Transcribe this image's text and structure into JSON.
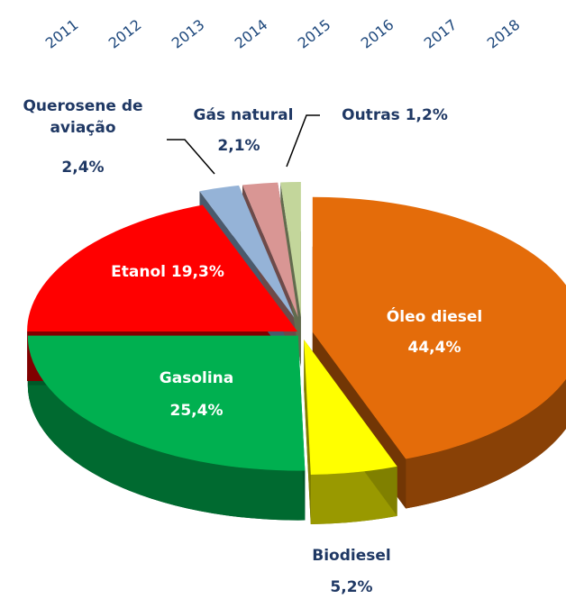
{
  "chart_data": {
    "type": "pie",
    "years": [
      "2011",
      "2012",
      "2013",
      "2014",
      "2015",
      "2016",
      "2017",
      "2018"
    ],
    "categories": [
      "Óleo diesel",
      "Biodiesel",
      "Gasolina",
      "Etanol",
      "Querosene de aviação",
      "Gás natural",
      "Outras"
    ],
    "values": [
      44.4,
      5.2,
      25.4,
      19.3,
      2.4,
      2.1,
      1.2
    ],
    "value_labels": [
      "44,4%",
      "5,2%",
      "25,4%",
      "19,3%",
      "2,4%",
      "2,1%",
      "1,2%"
    ],
    "colors": [
      "#e46c0a",
      "#ffff00",
      "#00b050",
      "#ff0000",
      "#95b3d7",
      "#d99694",
      "#c3d69b"
    ]
  }
}
